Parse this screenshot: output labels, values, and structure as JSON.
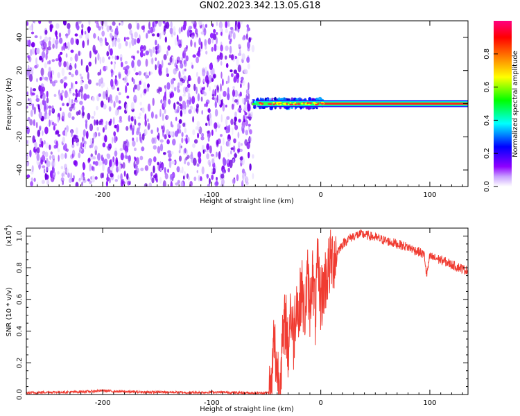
{
  "title": "GN02.2023.342.13.05.G18",
  "chart_data": [
    {
      "type": "heatmap",
      "xlabel": "Height of straight line (km)",
      "ylabel": "Frequency (Hz)",
      "xlim": [
        -270,
        135
      ],
      "ylim": [
        -50,
        50
      ],
      "xticks": [
        -200,
        -100,
        0,
        100
      ],
      "yticks": [
        -40,
        -20,
        0,
        20,
        40
      ],
      "colorbar": {
        "label": "Normalized spectral amplitude",
        "range": [
          0.0,
          1.0
        ],
        "ticks": [
          "0.0",
          "0.2",
          "0.4",
          "0.6",
          "0.8"
        ],
        "colors": [
          "#ffffff",
          "#8f00ff",
          "#0000ff",
          "#00ffff",
          "#00ff00",
          "#ffff00",
          "#ff8000",
          "#ff0000",
          "#ff0080"
        ]
      },
      "regions": [
        {
          "x_range": [
            -270,
            -62
          ],
          "frequency_range": [
            -50,
            50
          ],
          "description_value": "broadband noise, normalized amplitude ~0.0–0.15"
        },
        {
          "x_range": [
            -62,
            2
          ],
          "frequency_range": [
            -4,
            4
          ],
          "peak_frequency": 0,
          "peak_amplitude": 0.8
        },
        {
          "x_range": [
            2,
            135
          ],
          "frequency_range": [
            -1.5,
            1.5
          ],
          "peak_frequency": 0,
          "peak_amplitude": 0.9
        }
      ]
    },
    {
      "type": "line",
      "xlabel": "Height of straight line (km)",
      "ylabel": "SNR (10 * v/v)",
      "y_scale_label": "(x10",
      "y_scale_exponent": "4",
      "y_scale_close": ")",
      "xlim": [
        -270,
        135
      ],
      "ylim": [
        0,
        1.05
      ],
      "xticks": [
        -200,
        -100,
        0,
        100
      ],
      "yticks": [
        "0.0",
        "0.2",
        "0.4",
        "0.6",
        "0.8",
        "1.0"
      ],
      "series": [
        {
          "color": "#f03c32",
          "x": [
            -270,
            -250,
            -230,
            -210,
            -200,
            -190,
            -180,
            -160,
            -140,
            -120,
            -100,
            -80,
            -60,
            -50,
            -45,
            -43,
            -40,
            -38,
            -35,
            -32,
            -30,
            -28,
            -25,
            -22,
            -20,
            -18,
            -15,
            -12,
            -10,
            -8,
            -5,
            -3,
            0,
            5,
            10,
            15,
            20,
            25,
            30,
            35,
            40,
            45,
            50,
            60,
            70,
            80,
            90,
            95,
            97,
            100,
            110,
            120,
            135
          ],
          "y": [
            0.01,
            0.015,
            0.015,
            0.02,
            0.025,
            0.02,
            0.018,
            0.015,
            0.015,
            0.012,
            0.015,
            0.012,
            0.01,
            0.01,
            0.02,
            0.35,
            0.15,
            0.08,
            0.3,
            0.5,
            0.25,
            0.55,
            0.35,
            0.65,
            0.45,
            0.7,
            0.5,
            0.72,
            0.55,
            0.78,
            0.5,
            0.8,
            0.6,
            0.75,
            0.85,
            0.9,
            0.95,
            0.98,
            1.0,
            1.01,
            1.01,
            1.0,
            0.99,
            0.97,
            0.95,
            0.93,
            0.9,
            0.88,
            0.75,
            0.87,
            0.85,
            0.82,
            0.78
          ]
        }
      ]
    }
  ]
}
